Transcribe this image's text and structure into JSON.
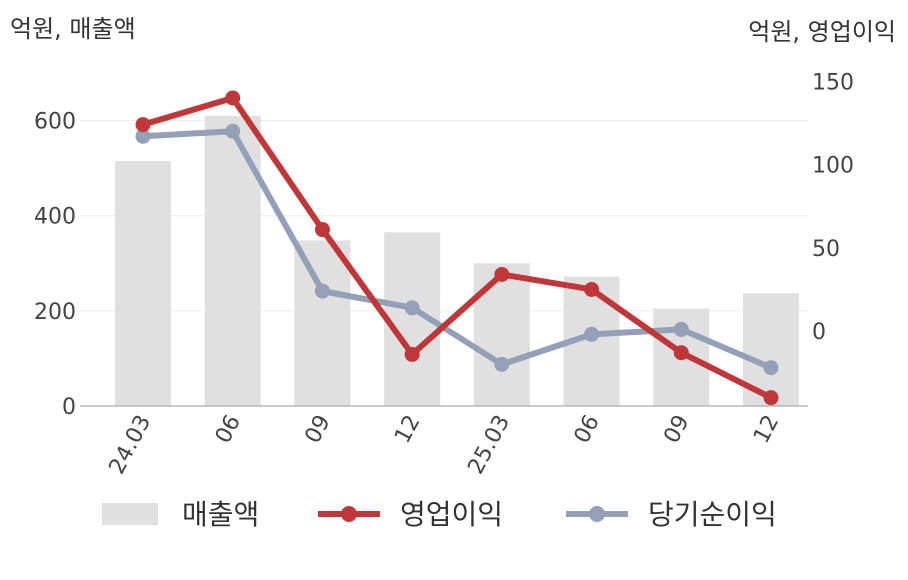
{
  "chart_data": {
    "type": "bar+line",
    "categories": [
      "24.03",
      "06",
      "09",
      "12",
      "25.03",
      "06",
      "09",
      "12"
    ],
    "left_axis": {
      "unit": "억원, 매출액",
      "ticks": [
        0,
        200,
        400,
        600
      ],
      "range": [
        0,
        700
      ]
    },
    "right_axis": {
      "unit": "억원, 영업이익",
      "ticks": [
        0,
        50,
        100,
        150
      ],
      "range": [
        -45,
        155
      ]
    },
    "series": [
      {
        "name": "매출액",
        "type": "bar",
        "axis": "left",
        "color": "#e0e0e0",
        "values": [
          515,
          610,
          348,
          365,
          300,
          272,
          205,
          237
        ]
      },
      {
        "name": "영업이익",
        "type": "line",
        "axis": "right",
        "color": "#c0373a",
        "values": [
          124,
          140,
          61,
          -14,
          34,
          25,
          -13,
          -40
        ]
      },
      {
        "name": "당기순이익",
        "type": "line",
        "axis": "right",
        "color": "#94a0b8",
        "values": [
          117,
          120,
          24,
          14,
          -20,
          -2,
          1,
          -22
        ]
      }
    ],
    "grid": true,
    "legend_position": "bottom"
  }
}
